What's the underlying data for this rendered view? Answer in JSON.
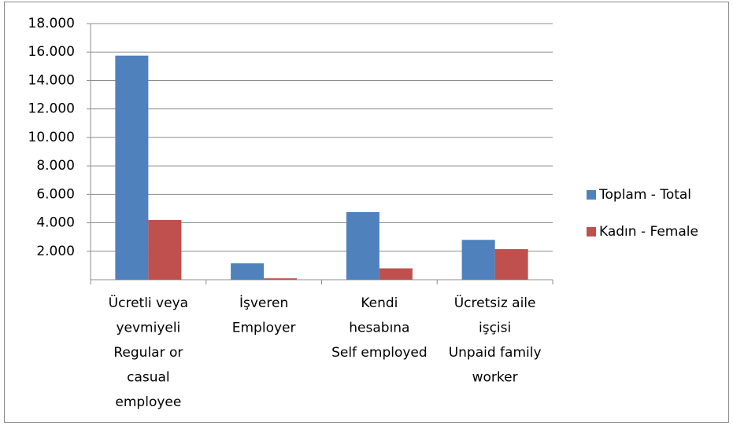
{
  "chart_data": {
    "type": "bar",
    "categories": [
      [
        "Ücretli veya",
        "yevmiyeli",
        "Regular or",
        "casual",
        "employee"
      ],
      [
        "İşveren",
        "Employer"
      ],
      [
        "Kendi",
        "hesabına",
        "Self employed"
      ],
      [
        "Ücretsiz aile",
        "işçisi",
        "Unpaid family",
        "worker"
      ]
    ],
    "series": [
      {
        "name": "Toplam - Total",
        "color": "#4f81bd",
        "values": [
          15750,
          1150,
          4750,
          2800
        ]
      },
      {
        "name": "Kadın - Female",
        "color": "#c0504d",
        "values": [
          4200,
          100,
          800,
          2150
        ]
      }
    ],
    "ylim": [
      0,
      18000
    ],
    "yticks": [
      {
        "value": 2000,
        "label": "2.000"
      },
      {
        "value": 4000,
        "label": "4.000"
      },
      {
        "value": 6000,
        "label": "6.000"
      },
      {
        "value": 8000,
        "label": "8.000"
      },
      {
        "value": 10000,
        "label": "10.000"
      },
      {
        "value": 12000,
        "label": "12.000"
      },
      {
        "value": 14000,
        "label": "14.000"
      },
      {
        "value": 16000,
        "label": "16.000"
      },
      {
        "value": 18000,
        "label": "18.000"
      }
    ],
    "grid": true,
    "legend": "right"
  }
}
